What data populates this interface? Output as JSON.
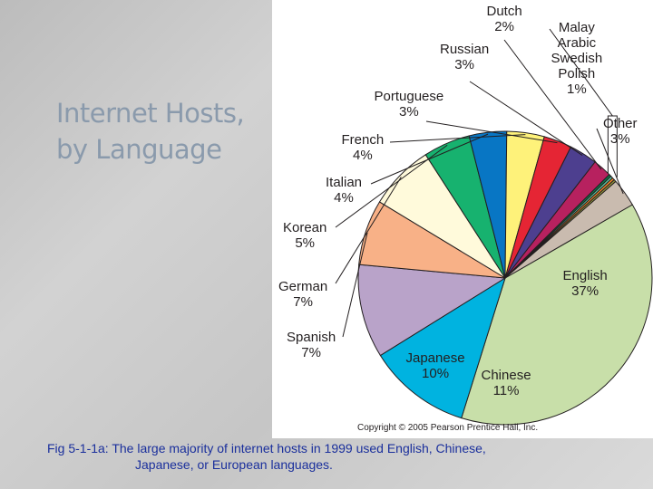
{
  "slide": {
    "title_line1": "Internet Hosts,",
    "title_line2": "by Language",
    "copyright": "Copyright © 2005 Pearson Prentice Hall, Inc.",
    "caption_line1": "Fig 5-1-1a: The large majority of internet hosts in 1999 used English, Chinese,",
    "caption_line2": "Japanese, or European languages."
  },
  "chart_data": {
    "type": "pie",
    "title": "",
    "slices": [
      {
        "label": "English",
        "value": 37,
        "display": "37%",
        "color": "#c8dfa9"
      },
      {
        "label": "Chinese",
        "value": 11,
        "display": "11%",
        "color": "#00b3e0"
      },
      {
        "label": "Japanese",
        "value": 10,
        "display": "10%",
        "color": "#b9a3c9"
      },
      {
        "label": "Spanish",
        "value": 7,
        "display": "7%",
        "color": "#f8b187"
      },
      {
        "label": "German",
        "value": 7,
        "display": "7%",
        "color": "#fffadb"
      },
      {
        "label": "Korean",
        "value": 5,
        "display": "5%",
        "color": "#17b26f"
      },
      {
        "label": "Italian",
        "value": 4,
        "display": "4%",
        "color": "#0876c4"
      },
      {
        "label": "French",
        "value": 4,
        "display": "4%",
        "color": "#fef27a"
      },
      {
        "label": "Portuguese",
        "value": 3,
        "display": "3%",
        "color": "#e52534"
      },
      {
        "label": "Russian",
        "value": 3,
        "display": "3%",
        "color": "#4d3f8f"
      },
      {
        "label": "Dutch",
        "value": 2,
        "display": "2%",
        "color": "#b7215f"
      },
      {
        "label": "Malay",
        "value": 0.25,
        "display": "",
        "color": "#0a7a4a"
      },
      {
        "label": "Arabic",
        "value": 0.25,
        "display": "",
        "color": "#5ec2a0"
      },
      {
        "label": "Swedish",
        "value": 0.25,
        "display": "",
        "color": "#f4882c"
      },
      {
        "label": "Polish",
        "value": 0.25,
        "display": "",
        "color": "#8c8d3a"
      },
      {
        "label": "Other",
        "value": 3,
        "display": "3%",
        "color": "#c9bbaf"
      }
    ],
    "group_label": {
      "labels": [
        "Malay",
        "Arabic",
        "Swedish",
        "Polish"
      ],
      "display": "1%"
    }
  }
}
